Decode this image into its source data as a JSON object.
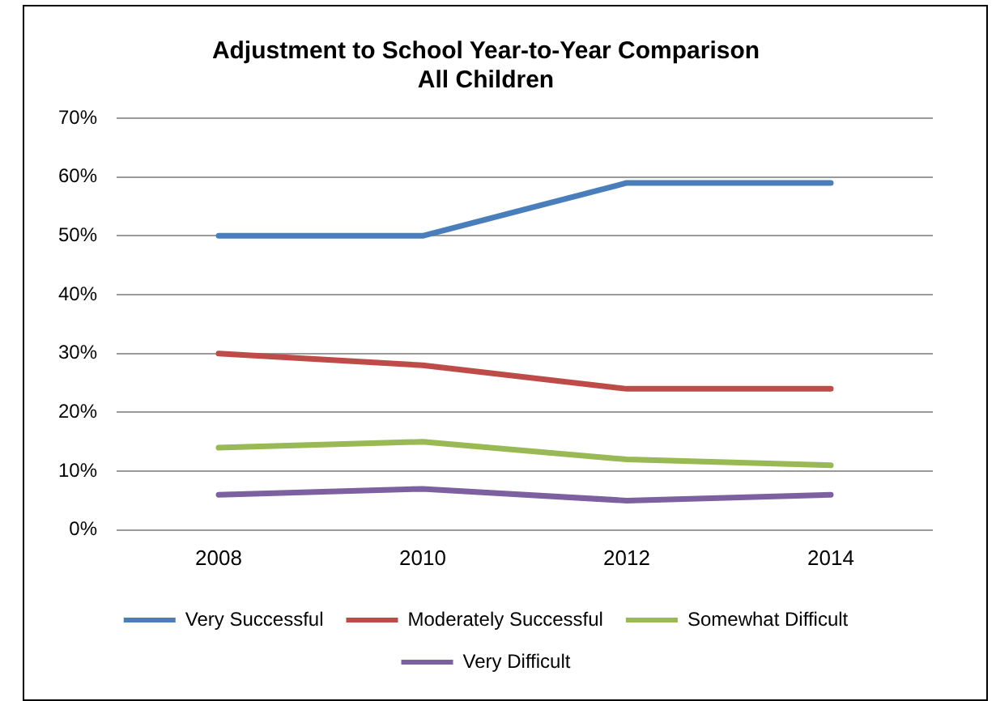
{
  "chart_data": {
    "type": "line",
    "title": "Adjustment to School Year-to-Year Comparison",
    "subtitle": "All Children",
    "categories": [
      "2008",
      "2010",
      "2012",
      "2014"
    ],
    "series": [
      {
        "name": "Very Successful",
        "color": "#4a7ebb",
        "values": [
          50,
          50,
          59,
          59
        ]
      },
      {
        "name": "Moderately Successful",
        "color": "#be4b48",
        "values": [
          30,
          28,
          24,
          24
        ]
      },
      {
        "name": "Somewhat Difficult",
        "color": "#98b954",
        "values": [
          14,
          15,
          12,
          11
        ]
      },
      {
        "name": "Very Difficult",
        "color": "#7d60a0",
        "values": [
          6,
          7,
          5,
          6
        ]
      }
    ],
    "ylim": [
      0,
      70
    ],
    "yticks": [
      {
        "value": 0,
        "label": "0%"
      },
      {
        "value": 10,
        "label": "10%"
      },
      {
        "value": 20,
        "label": "20%"
      },
      {
        "value": 30,
        "label": "30%"
      },
      {
        "value": 40,
        "label": "40%"
      },
      {
        "value": 50,
        "label": "50%"
      },
      {
        "value": 60,
        "label": "60%"
      },
      {
        "value": 70,
        "label": "70%"
      }
    ],
    "grid": "y",
    "legend": "bottom",
    "marker": "none",
    "line_style": "solid"
  }
}
